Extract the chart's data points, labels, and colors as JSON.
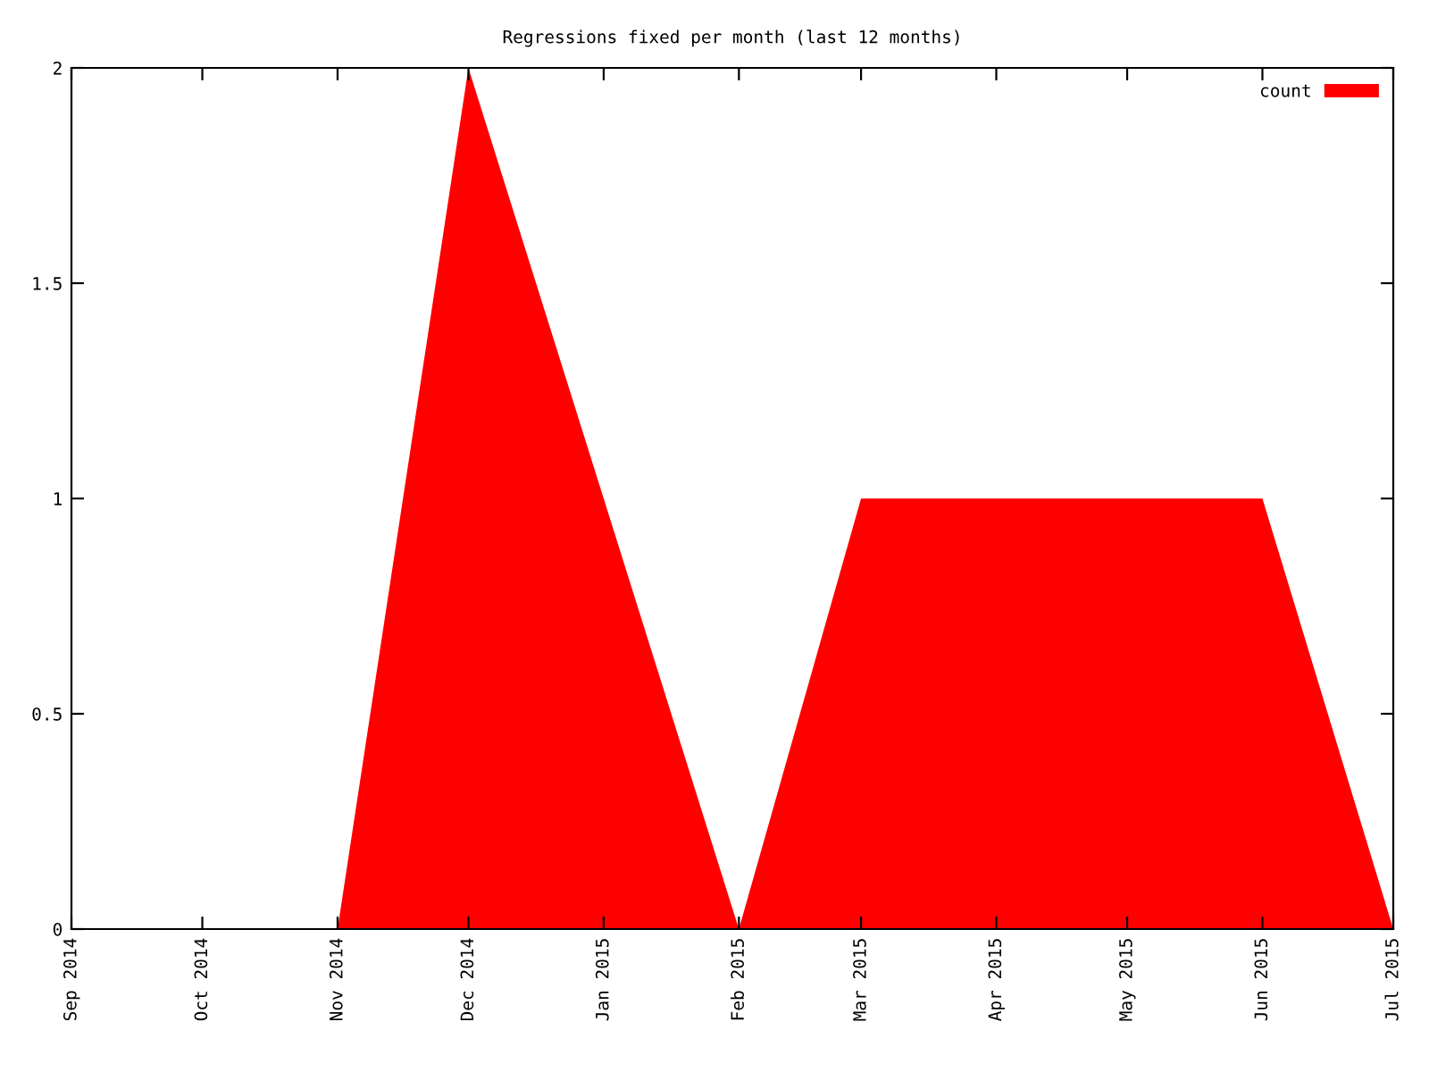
{
  "chart_data": {
    "type": "area",
    "title": "Regressions fixed per month (last 12 months)",
    "x": [
      "2014-09",
      "2014-10",
      "2014-11",
      "2014-12",
      "2015-01",
      "2015-02",
      "2015-03",
      "2015-04",
      "2015-05",
      "2015-06",
      "2015-07"
    ],
    "series": [
      {
        "name": "count",
        "color": "#ff0000",
        "values": [
          0,
          0,
          0,
          2,
          1,
          0,
          1,
          1,
          1,
          1,
          0
        ]
      }
    ],
    "xlim": [
      "2014-09",
      "2015-07"
    ],
    "xticks": [
      {
        "value": "2014-09",
        "label": "Sep 2014"
      },
      {
        "value": "2014-10",
        "label": "Oct 2014"
      },
      {
        "value": "2014-11",
        "label": "Nov 2014"
      },
      {
        "value": "2014-12",
        "label": "Dec 2014"
      },
      {
        "value": "2015-01",
        "label": "Jan 2015"
      },
      {
        "value": "2015-02",
        "label": "Feb 2015"
      },
      {
        "value": "2015-03",
        "label": "Mar 2015"
      },
      {
        "value": "2015-04",
        "label": "Apr 2015"
      },
      {
        "value": "2015-05",
        "label": "May 2015"
      },
      {
        "value": "2015-06",
        "label": "Jun 2015"
      },
      {
        "value": "2015-07",
        "label": "Jul 2015"
      }
    ],
    "ylim": [
      0,
      2
    ],
    "yticks": [
      0,
      0.5,
      1,
      1.5,
      2
    ],
    "grid": false,
    "legend": "top right"
  }
}
